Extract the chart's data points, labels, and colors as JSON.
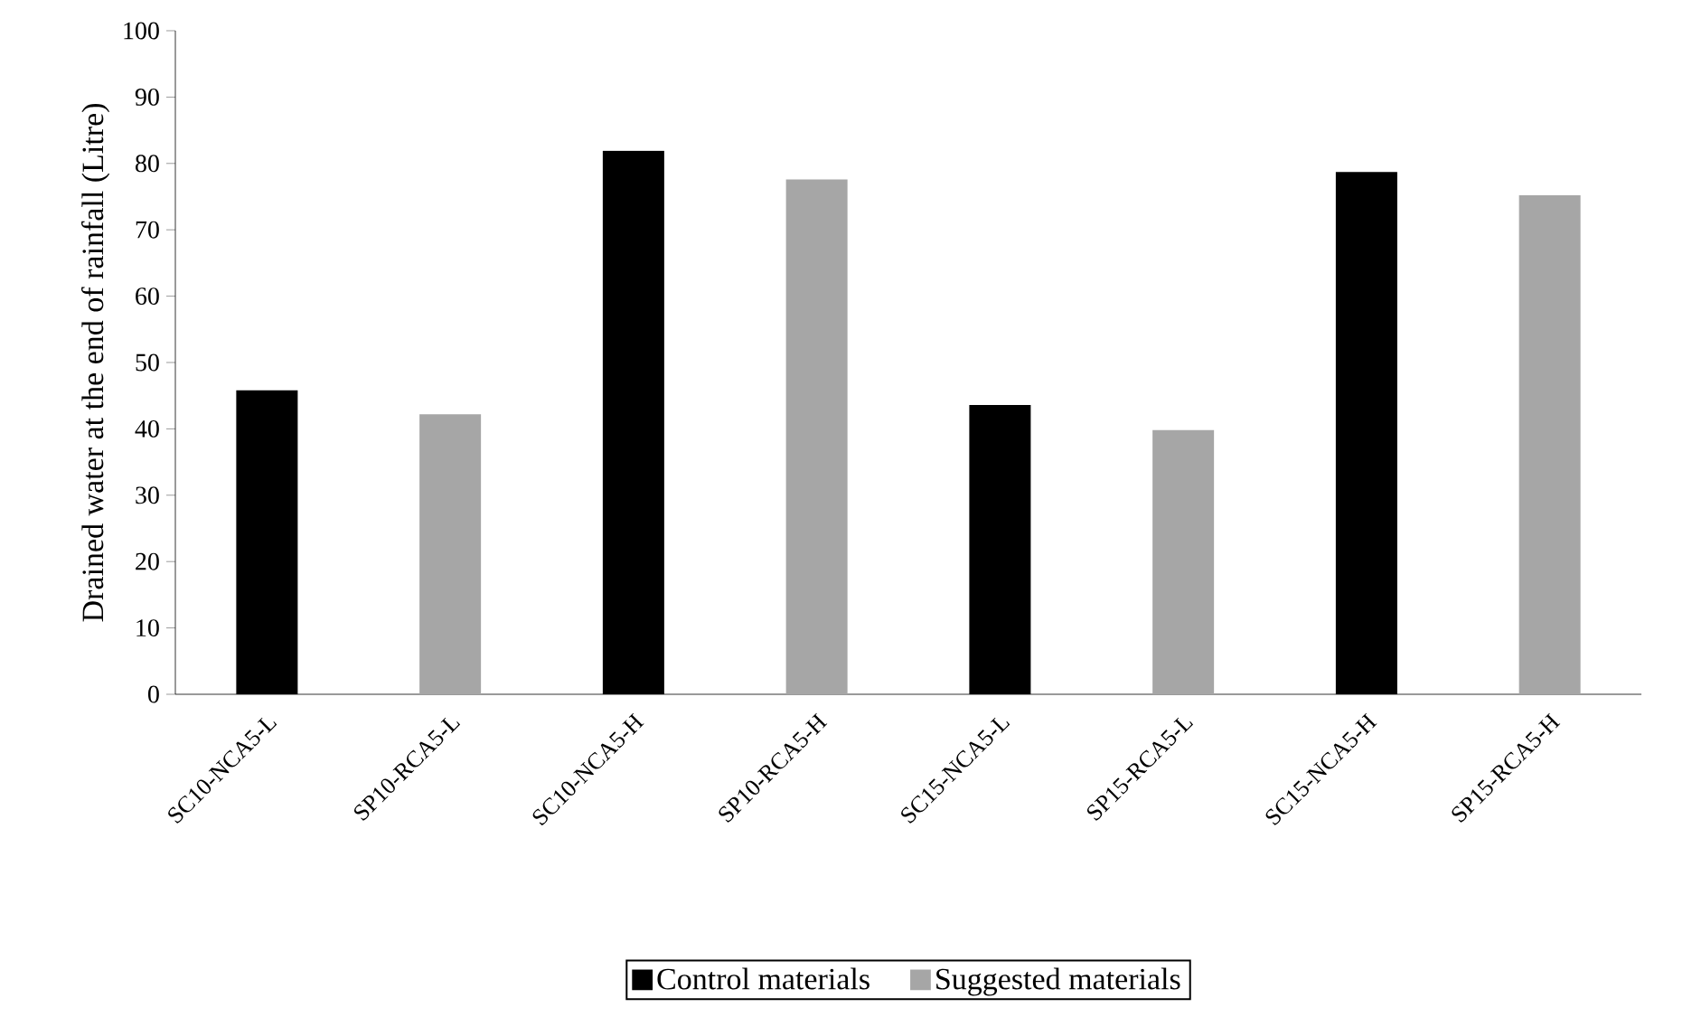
{
  "chart_data": {
    "type": "bar",
    "ylabel": "Drained water at the end of  rainfall (Litre)",
    "categories": [
      "SC10-NCA5-L",
      "SP10-RCA5-L",
      "SC10-NCA5-H",
      "SP10-RCA5-H",
      "SC15-NCA5-L",
      "SP15-RCA5-L",
      "SC15-NCA5-H",
      "SP15-RCA5-H"
    ],
    "series": [
      {
        "name": "Control materials",
        "color": "#000000",
        "values": [
          45.8,
          null,
          81.9,
          null,
          43.6,
          null,
          78.7,
          null
        ]
      },
      {
        "name": "Suggested materials",
        "color": "#a6a6a6",
        "values": [
          null,
          42.2,
          null,
          77.6,
          null,
          39.8,
          null,
          75.2
        ]
      }
    ],
    "ylim": [
      0,
      100
    ],
    "yticks": [
      0,
      10,
      20,
      30,
      40,
      50,
      60,
      70,
      80,
      90,
      100
    ],
    "grid": false,
    "legend": "bottom"
  }
}
